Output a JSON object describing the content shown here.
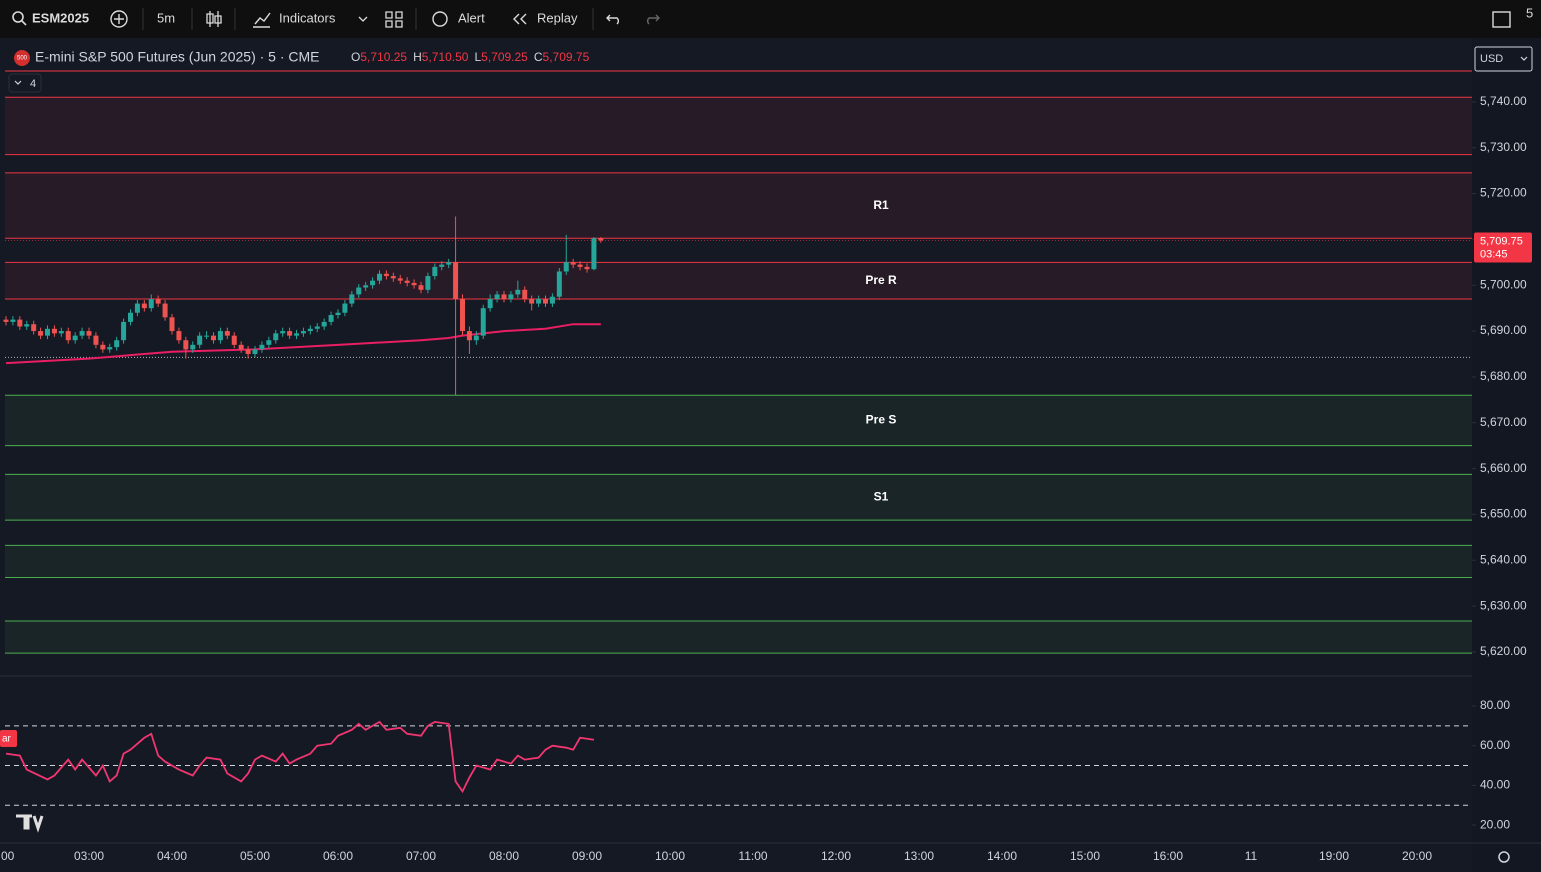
{
  "toolbar": {
    "symbol": "ESM2025",
    "interval": "5m",
    "indicators": "Indicators",
    "alert": "Alert",
    "replay": "Replay",
    "corner": "5"
  },
  "legend": {
    "badge": "500",
    "title": "E-mini S&P 500 Futures (Jun 2025) · 5 · CME",
    "ohlc": [
      {
        "key": "O",
        "value": "5,710.25"
      },
      {
        "key": "H",
        "value": "5,710.50"
      },
      {
        "key": "L",
        "value": "5,709.25"
      },
      {
        "key": "C",
        "value": "5,709.75"
      }
    ],
    "indicator_count": "4",
    "currency": "USD",
    "rsi_tag": "ar"
  },
  "chart": {
    "type": "candlestick",
    "up_color": "#26a69a",
    "down_color": "#ef5350",
    "time_labels": [
      ":00",
      "03:00",
      "04:00",
      "05:00",
      "06:00",
      "07:00",
      "08:00",
      "09:00",
      "10:00",
      "11:00",
      "12:00",
      "13:00",
      "14:00",
      "15:00",
      "16:00",
      "11",
      "19:00",
      "20:00"
    ],
    "open": [
      5692.5,
      5692,
      5692.5,
      5691,
      5691.5,
      5690,
      5689,
      5690.5,
      5689.5,
      5690,
      5688,
      5689,
      5690,
      5689,
      5687,
      5686,
      5686.5,
      5688,
      5692,
      5694,
      5696,
      5695,
      5697,
      5696,
      5693,
      5690,
      5688,
      5686,
      5687,
      5689,
      5689,
      5688,
      5690,
      5689,
      5687,
      5686,
      5685,
      5686,
      5687,
      5688,
      5689.5,
      5690,
      5689,
      5689.5,
      5690,
      5690.5,
      5691,
      5692,
      5693.5,
      5694,
      5696,
      5698,
      5699.5,
      5700,
      5701,
      5702.5,
      5702,
      5701.5,
      5701,
      5700.5,
      5700,
      5699,
      5702,
      5704,
      5704.5,
      5705,
      5697,
      5690,
      5688,
      5689,
      5695,
      5697,
      5698,
      5697,
      5698,
      5699,
      5697,
      5696,
      5697,
      5696,
      5697.5,
      5703,
      5705,
      5704.5,
      5704,
      5703.5,
      5710.25
    ],
    "high": [
      5693.25,
      5693.25,
      5693.25,
      5692.25,
      5692.25,
      5690.75,
      5691.25,
      5691.25,
      5690.75,
      5690.75,
      5689.75,
      5690.75,
      5690.75,
      5689.75,
      5687.75,
      5687.25,
      5688.75,
      5692.75,
      5694.75,
      5696.75,
      5696.75,
      5698,
      5697.75,
      5696.75,
      5693.75,
      5690.75,
      5688.75,
      5687.75,
      5689.75,
      5690,
      5689.75,
      5690.75,
      5690.75,
      5689.75,
      5687.75,
      5686.75,
      5686.75,
      5687.75,
      5688.75,
      5690.25,
      5690.75,
      5690.75,
      5690.25,
      5690.75,
      5691.25,
      5691.75,
      5692.75,
      5694.25,
      5694.75,
      5696.75,
      5698.75,
      5700.25,
      5700.75,
      5701.75,
      5703.25,
      5703.25,
      5702.75,
      5702.25,
      5701.75,
      5701.25,
      5700.75,
      5702.75,
      5704.75,
      5705.25,
      5705.75,
      5715,
      5698,
      5691,
      5690,
      5695.75,
      5698,
      5698.75,
      5698.75,
      5698.75,
      5701,
      5699.75,
      5697.75,
      5697.75,
      5697.75,
      5698.25,
      5703.75,
      5711,
      5705.75,
      5705.25,
      5704.75,
      5710.5,
      5710.5
    ],
    "low": [
      5691.25,
      5691.25,
      5690.25,
      5690.25,
      5689.25,
      5688.25,
      5688.25,
      5688.75,
      5688.75,
      5687.25,
      5687.25,
      5688.25,
      5688.25,
      5686.25,
      5685.25,
      5685.25,
      5685.75,
      5687.25,
      5691.25,
      5693.25,
      5694.25,
      5694.25,
      5695.25,
      5692.25,
      5689.25,
      5687.25,
      5684,
      5685.25,
      5686.25,
      5688.25,
      5687.25,
      5687.25,
      5688.25,
      5686.25,
      5685.25,
      5684,
      5684.25,
      5685.25,
      5686.25,
      5687.25,
      5688.75,
      5688.25,
      5688.25,
      5688.75,
      5689.25,
      5689.75,
      5690.25,
      5691.25,
      5692.75,
      5693.25,
      5695.25,
      5697.25,
      5698.75,
      5699.25,
      5700.25,
      5701.25,
      5700.75,
      5700.25,
      5699.75,
      5699.25,
      5698.25,
      5698.25,
      5701.25,
      5703.25,
      5703.75,
      5676,
      5689,
      5685,
      5687,
      5688.25,
      5694.25,
      5696.25,
      5696.25,
      5696.25,
      5697.25,
      5696.25,
      5694.5,
      5695.25,
      5695.25,
      5695.25,
      5696.75,
      5702.25,
      5703.75,
      5703.25,
      5702.75,
      5703.25,
      5709.25
    ],
    "close": [
      5692,
      5692.5,
      5691,
      5691.5,
      5690,
      5689,
      5690.5,
      5689.5,
      5690,
      5688,
      5689,
      5690,
      5689,
      5687,
      5686,
      5686.5,
      5688,
      5692,
      5694,
      5696,
      5695,
      5697,
      5696,
      5693,
      5690,
      5688,
      5686,
      5687,
      5689,
      5689,
      5688,
      5690,
      5689,
      5687,
      5686,
      5685,
      5686,
      5687,
      5688,
      5689.5,
      5690,
      5689,
      5689.5,
      5690,
      5690.5,
      5691,
      5692,
      5693.5,
      5694,
      5696,
      5698,
      5699.5,
      5700,
      5701,
      5702.5,
      5702,
      5701.5,
      5701,
      5700.5,
      5700,
      5699,
      5702,
      5704,
      5704.5,
      5705,
      5697,
      5690,
      5688,
      5689,
      5695,
      5697,
      5698,
      5697,
      5698,
      5699,
      5697,
      5696,
      5697,
      5696,
      5697.5,
      5703,
      5705,
      5704.5,
      5704,
      5703.5,
      5710.25,
      5709.75
    ],
    "ma": {
      "color": "#e91e63",
      "x": [
        0,
        12,
        24,
        36,
        48,
        60,
        64,
        66,
        72,
        78,
        82,
        86
      ],
      "values": [
        5683,
        5684,
        5685.5,
        5686,
        5687,
        5688,
        5688.5,
        5689,
        5690,
        5690.5,
        5691.5,
        5691.5
      ]
    },
    "ylim": [
      5614.75,
      5753.5
    ],
    "yticks": [
      {
        "value": 5620,
        "label": "5,620.00"
      },
      {
        "value": 5630,
        "label": "5,630.00"
      },
      {
        "value": 5640,
        "label": "5,640.00"
      },
      {
        "value": 5650,
        "label": "5,650.00"
      },
      {
        "value": 5660,
        "label": "5,660.00"
      },
      {
        "value": 5670,
        "label": "5,670.00"
      },
      {
        "value": 5680,
        "label": "5,680.00"
      },
      {
        "value": 5690,
        "label": "5,690.00"
      },
      {
        "value": 5700,
        "label": "5,700.00"
      },
      {
        "value": 5710,
        "label": "5,710.00"
      },
      {
        "value": 5720,
        "label": "5,720.00"
      },
      {
        "value": 5730,
        "label": "5,730.00"
      },
      {
        "value": 5740,
        "label": "5,740.00"
      }
    ],
    "levels": [
      {
        "price": 5746.75,
        "color": "#f23645"
      }
    ],
    "dotted_level": 5684.25,
    "zones": [
      {
        "top": 5741,
        "bottom": 5728.5,
        "color": "#f23645"
      },
      {
        "top": 5724.5,
        "bottom": 5710.25,
        "color": "#f23645",
        "label": "R1"
      },
      {
        "top": 5705,
        "bottom": 5697,
        "color": "#f23645",
        "label": "Pre R"
      },
      {
        "top": 5676,
        "bottom": 5665,
        "color": "#4caf50",
        "label": "Pre S"
      },
      {
        "top": 5658.75,
        "bottom": 5648.75,
        "color": "#4caf50",
        "label": "S1"
      },
      {
        "top": 5643.25,
        "bottom": 5636.25,
        "color": "#4caf50"
      },
      {
        "top": 5626.75,
        "bottom": 5619.75,
        "color": "#4caf50"
      }
    ],
    "last_price": {
      "label": "5,709.75",
      "countdown": "03:45",
      "color": "#f23645"
    }
  },
  "rsi": {
    "type": "line",
    "color": "#f23670",
    "x": [
      0,
      2,
      3,
      6,
      7,
      9,
      10,
      11,
      13,
      14,
      15,
      16,
      17,
      18,
      20,
      21,
      22,
      23,
      25,
      27,
      28,
      29,
      31,
      32,
      34,
      35,
      36,
      37,
      39,
      40,
      41,
      42,
      44,
      45,
      47,
      48,
      50,
      51,
      52,
      54,
      55,
      57,
      58,
      60,
      61,
      62,
      64,
      65,
      66,
      67,
      68,
      70,
      71,
      73,
      74,
      75,
      77,
      78,
      79,
      81,
      82,
      83,
      85
    ],
    "values": [
      56,
      55,
      48,
      43,
      45,
      53,
      48,
      53,
      45,
      50,
      42,
      45,
      56,
      58,
      64,
      66,
      55,
      52,
      48,
      45,
      50,
      54,
      53,
      46,
      42,
      46,
      53,
      55,
      52,
      56,
      51,
      53,
      56,
      60,
      61,
      65,
      68,
      71,
      68,
      72,
      68,
      69,
      66,
      65,
      70,
      72,
      71,
      42,
      37,
      44,
      50,
      48,
      53,
      51,
      55,
      53,
      54,
      58,
      60,
      59,
      58,
      64,
      63
    ],
    "bands": [
      70,
      50,
      30
    ],
    "ylim": [
      11,
      94.6
    ],
    "yticks": [
      {
        "value": 80,
        "label": "80.00"
      },
      {
        "value": 60,
        "label": "60.00"
      },
      {
        "value": 40,
        "label": "40.00"
      },
      {
        "value": 20,
        "label": "20.00"
      }
    ]
  }
}
